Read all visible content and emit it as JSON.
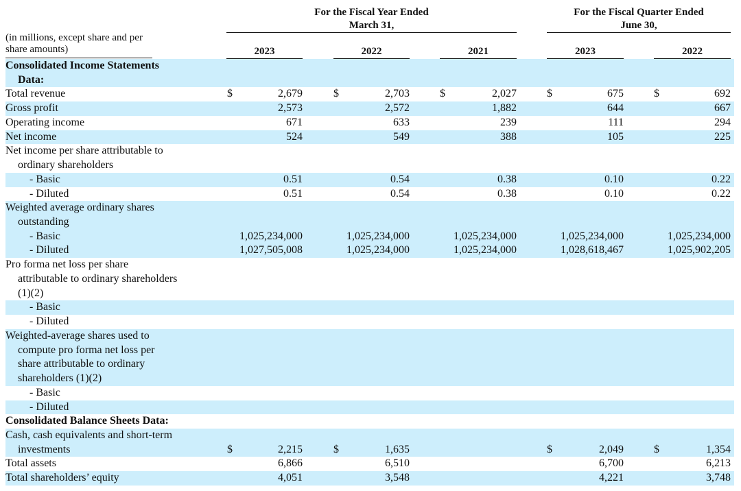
{
  "header": {
    "note": [
      "(in millions, except share and per",
      "share amounts)"
    ],
    "fiscal_year_heading": [
      "For the Fiscal Year Ended",
      "March 31,"
    ],
    "fiscal_quarter_heading": [
      "For the Fiscal Quarter Ended",
      "June 30,"
    ],
    "columns": [
      "2023",
      "2022",
      "2021",
      "2023",
      "2022"
    ]
  },
  "table": {
    "rows": [
      {
        "label": [
          "Consolidated Income Statements",
          "Data:"
        ]
      },
      {
        "label": [
          "Total revenue"
        ],
        "currency": [
          "$",
          "$",
          "$",
          "$",
          "$"
        ],
        "values": [
          "2,679",
          "2,703",
          "2,027",
          "675",
          "692"
        ]
      },
      {
        "label": [
          "Gross profit"
        ],
        "values": [
          "2,573",
          "2,572",
          "1,882",
          "644",
          "667"
        ]
      },
      {
        "label": [
          "Operating income"
        ],
        "values": [
          "671",
          "633",
          "239",
          "111",
          "294"
        ]
      },
      {
        "label": [
          "Net income"
        ],
        "values": [
          "524",
          "549",
          "388",
          "105",
          "225"
        ]
      },
      {
        "label": [
          "Net income per share attributable to",
          "ordinary shareholders"
        ]
      },
      {
        "label": [
          "- Basic"
        ],
        "values": [
          "0.51",
          "0.54",
          "0.38",
          "0.10",
          "0.22"
        ]
      },
      {
        "label": [
          "- Diluted"
        ],
        "values": [
          "0.51",
          "0.54",
          "0.38",
          "0.10",
          "0.22"
        ]
      },
      {
        "label": [
          "Weighted average ordinary shares",
          "outstanding"
        ]
      },
      {
        "label": [
          "- Basic"
        ],
        "values": [
          "1,025,234,000",
          "1,025,234,000",
          "1,025,234,000",
          "1,025,234,000",
          "1,025,234,000"
        ]
      },
      {
        "label": [
          "- Diluted"
        ],
        "values": [
          "1,027,505,008",
          "1,025,234,000",
          "1,025,234,000",
          "1,028,618,467",
          "1,025,902,205"
        ]
      },
      {
        "label": [
          "Pro forma net loss per share",
          "attributable to ordinary shareholders",
          "(1)(2)"
        ]
      },
      {
        "label": [
          "- Basic"
        ]
      },
      {
        "label": [
          "- Diluted"
        ]
      },
      {
        "label": [
          "Weighted-average shares used to",
          "compute pro forma net loss per",
          "share attributable to ordinary",
          "shareholders (1)(2)"
        ]
      },
      {
        "label": [
          "- Basic"
        ]
      },
      {
        "label": [
          "- Diluted"
        ]
      },
      {
        "label": [
          "Consolidated Balance Sheets Data:"
        ]
      },
      {
        "label": [
          "Cash, cash equivalents and short-term",
          "investments"
        ],
        "currency": [
          "$",
          "$",
          null,
          "$",
          "$"
        ],
        "values": [
          "2,215",
          "1,635",
          null,
          "2,049",
          "1,354"
        ]
      },
      {
        "label": [
          "Total assets"
        ],
        "values": [
          "6,866",
          "6,510",
          null,
          "6,700",
          "6,213"
        ]
      },
      {
        "label": [
          "Total shareholders’ equity"
        ],
        "values": [
          "4,051",
          "3,548",
          null,
          "4,221",
          "3,748"
        ]
      }
    ]
  }
}
